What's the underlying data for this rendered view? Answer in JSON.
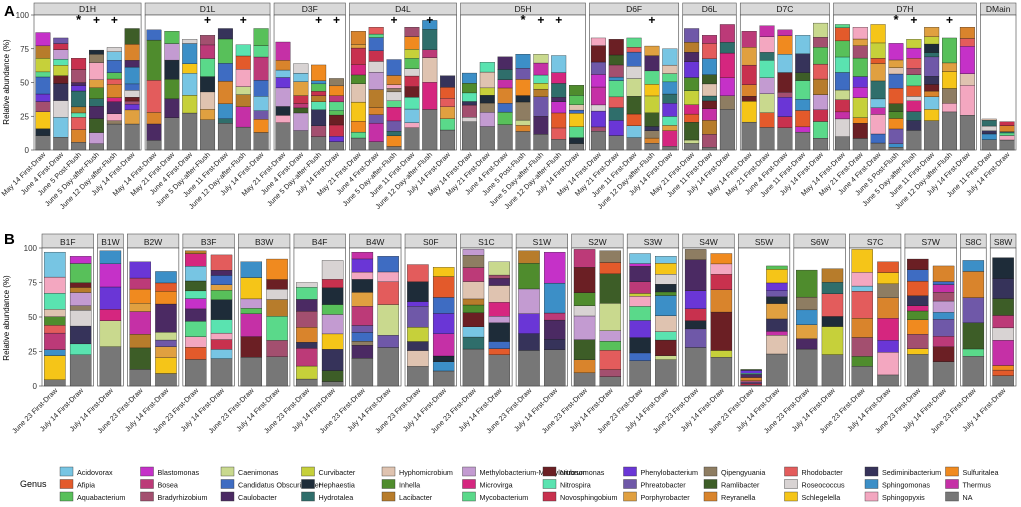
{
  "figure": {
    "panel_a_label": "A",
    "panel_b_label": "B",
    "ylabel": "Relative abundance (%)",
    "legend_title": "Genus"
  },
  "colors": {
    "Acidovorax": "#77c5e3",
    "Afipia": "#e35a2b",
    "Aquabacterium": "#58c05a",
    "Blastomonas": "#c531c8",
    "Bosea": "#bc3a78",
    "Bradyrhizobium": "#a34f6f",
    "Caenimonas": "#c9d98e",
    "Candidatus Obscuribacter": "#3e6cc2",
    "Caulobacter": "#4b2a63",
    "Curvibacter": "#c6d03a",
    "Hephaestia": "#1e2c39",
    "Hydrotalea": "#2f6e6b",
    "Hyphomicrobium": "#dfc3b0",
    "Inhella": "#4f8c2d",
    "Lacibacter": "#b77c2b",
    "Methylobacterium-Methylorubrum": "#c39bd1",
    "Microvirga": "#d5267f",
    "Mycobacterium": "#5ad98a",
    "Nitrosomonas": "#6b1f24",
    "Nitrospira": "#5ae3b0",
    "Novosphingobium": "#c8314e",
    "Phenylobacterium": "#6a36d6",
    "Phreatobacter": "#6f58a8",
    "Porphyrobacter": "#e0a040",
    "Qipengyuania": "#8e7d62",
    "Ramlibacter": "#3d5d27",
    "Reyranella": "#d9842c",
    "Rhodobacter": "#e35c5c",
    "Roseococcus": "#d8d3d3",
    "Schlegelella": "#f5c518",
    "Sediminibacterium": "#36335a",
    "Sphingomonas": "#3c8fc7",
    "Sphingopyxis": "#f3a7c0",
    "Sulfuritalea": "#f08a1f",
    "Thermus": "#c530a6",
    "NA": "#777777"
  },
  "chart_data": [
    {
      "type": "bar",
      "title": "Panel A",
      "ylabel": "Relative abundance (%)",
      "ylim": [
        0,
        100
      ],
      "yticks": [
        0,
        25,
        50,
        75,
        100
      ],
      "facets": [
        {
          "name": "D1H",
          "categories": [
            "May 14 First-Draw",
            "June 4 First-Draw",
            "June 5 Post-Flush",
            "June 5 Day-after-Flush",
            "June 12 Day-after-Flush",
            "July 14 First-Draw"
          ],
          "totals": [
            87,
            83,
            68,
            74,
            76,
            90
          ],
          "marks": [
            "",
            "",
            "*",
            "+",
            "+",
            ""
          ]
        },
        {
          "name": "D1L",
          "categories": [
            "May 14 First-Draw",
            "May 21 First-Draw",
            "June 4 First-Draw",
            "June 5 Day-after-Flush",
            "June 11 First-Draw",
            "June 12 Day-after-Flush",
            "July 14 First-Draw"
          ],
          "totals": [
            89,
            88,
            82,
            85,
            90,
            78,
            90
          ],
          "marks": [
            "",
            "",
            "",
            "+",
            "",
            "+",
            ""
          ]
        },
        {
          "name": "D3F",
          "categories": [
            "May 21 First-Draw",
            "June 4 First-Draw",
            "June 5 Day-after-Flush",
            "July 14 First-Draw"
          ],
          "totals": [
            80,
            64,
            63,
            53
          ],
          "marks": [
            "",
            "",
            "+",
            "+"
          ]
        },
        {
          "name": "D4L",
          "categories": [
            "May 21 First-Draw",
            "June 4 First-Draw",
            "June 5 Day-after-Flush",
            "June 11 First-Draw",
            "June 12 Day-after-Flush",
            "July 14 First-Draw"
          ],
          "totals": [
            88,
            91,
            67,
            91,
            96,
            55
          ],
          "marks": [
            "",
            "",
            "+",
            "",
            "+",
            ""
          ]
        },
        {
          "name": "D5H",
          "categories": [
            "May 14 First-Draw",
            "May 21 First-Draw",
            "June 4 First-Draw",
            "June 5 Post-Flush",
            "June 5 Day-after-Flush",
            "June 12 Day-after-Flush",
            "July 14 First-Draw"
          ],
          "totals": [
            57,
            65,
            69,
            71,
            71,
            70,
            48
          ],
          "marks": [
            "",
            "",
            "",
            "*",
            "+",
            "+",
            ""
          ]
        },
        {
          "name": "D6F",
          "categories": [
            "May 14 First-Draw",
            "May 21 First-Draw",
            "June 11 First-Draw",
            "June 12 Day-after-Flush",
            "July 14 First-Draw"
          ],
          "totals": [
            83,
            82,
            83,
            77,
            75
          ],
          "marks": [
            "",
            "",
            "",
            "+",
            ""
          ]
        },
        {
          "name": "D6L",
          "categories": [
            "May 21 First-Draw",
            "June 11 First-Draw",
            "July 14 First-Draw"
          ],
          "totals": [
            90,
            85,
            93
          ],
          "marks": [
            "",
            "",
            ""
          ]
        },
        {
          "name": "D7C",
          "categories": [
            "May 14 First-Draw",
            "May 21 First-Draw",
            "June 4 First-Draw",
            "June 11 First-Draw",
            "July 14 First-Draw"
          ],
          "totals": [
            88,
            92,
            89,
            85,
            94
          ],
          "marks": [
            "",
            "",
            "",
            "",
            ""
          ]
        },
        {
          "name": "D7H",
          "categories": [
            "May 14 First-Draw",
            "May 21 First-Draw",
            "June 4 First-Draw",
            "June 5 Post-Flush",
            "June 5 Day-after-Flush",
            "June 11 First-Draw",
            "June 12 Day-after-Flush",
            "July 14 First-Draw"
          ],
          "totals": [
            93,
            91,
            93,
            79,
            82,
            91,
            83,
            91
          ],
          "marks": [
            "",
            "",
            "",
            "*",
            "+",
            "",
            "+",
            ""
          ]
        },
        {
          "name": "DMain",
          "categories": [
            "June 11 First-Draw",
            "July 14 First-Draw"
          ],
          "totals": [
            23,
            21
          ],
          "marks": [
            "",
            ""
          ]
        }
      ]
    },
    {
      "type": "bar",
      "title": "Panel B",
      "ylabel": "Relative abundance (%)",
      "ylim": [
        0,
        100
      ],
      "yticks": [
        0,
        25,
        50,
        75,
        100
      ],
      "facets": [
        {
          "name": "B1F",
          "categories": [
            "June 23 First-Draw",
            "July 14 First-Draw"
          ],
          "totals": [
            97,
            94
          ]
        },
        {
          "name": "B1W",
          "categories": [
            "July 14 First-Draw"
          ],
          "totals": [
            98
          ]
        },
        {
          "name": "B2W",
          "categories": [
            "June 23 First-Draw",
            "July 14 First-Draw"
          ],
          "totals": [
            90,
            83
          ]
        },
        {
          "name": "B3F",
          "categories": [
            "June 23 First-Draw",
            "July 14 First-Draw"
          ],
          "totals": [
            98,
            95
          ]
        },
        {
          "name": "B3W",
          "categories": [
            "June 23 First-Draw",
            "July 14 First-Draw"
          ],
          "totals": [
            90,
            92
          ]
        },
        {
          "name": "B4F",
          "categories": [
            "June 23 First-Draw",
            "July 14 First-Draw"
          ],
          "totals": [
            75,
            91
          ]
        },
        {
          "name": "B4W",
          "categories": [
            "June 23 First-Draw",
            "July 14 First-Draw"
          ],
          "totals": [
            97,
            94
          ]
        },
        {
          "name": "S0F",
          "categories": [
            "June 23 First-Draw",
            "July 14 First-Draw"
          ],
          "totals": [
            88,
            86
          ]
        },
        {
          "name": "S1C",
          "categories": [
            "June 23 First-Draw",
            "July 14 First-Draw"
          ],
          "totals": [
            99,
            90
          ]
        },
        {
          "name": "S1W",
          "categories": [
            "June 23 First-Draw",
            "July 14 First-Draw"
          ],
          "totals": [
            98,
            97
          ]
        },
        {
          "name": "S2W",
          "categories": [
            "June 23 First-Draw",
            "July 14 First-Draw"
          ],
          "totals": [
            99,
            98
          ]
        },
        {
          "name": "S3W",
          "categories": [
            "June 23 First-Draw",
            "July 14 First-Draw"
          ],
          "totals": [
            96,
            94
          ]
        },
        {
          "name": "S4W",
          "categories": [
            "June 23 First-Draw",
            "July 14 First-Draw"
          ],
          "totals": [
            99,
            96
          ]
        },
        {
          "name": "S5W",
          "categories": [
            "June 23 First-Draw",
            "July 14 First-Draw"
          ],
          "totals": [
            12,
            87
          ]
        },
        {
          "name": "S6W",
          "categories": [
            "June 23 First-Draw",
            "July 14 First-Draw"
          ],
          "totals": [
            84,
            85
          ]
        },
        {
          "name": "S7C",
          "categories": [
            "June 23 First-Draw",
            "July 14 First-Draw"
          ],
          "totals": [
            99,
            90
          ]
        },
        {
          "name": "S7W",
          "categories": [
            "June 23 First-Draw",
            "July 14 First-Draw"
          ],
          "totals": [
            92,
            87
          ]
        },
        {
          "name": "S8C",
          "categories": [
            "June 23 First-Draw"
          ],
          "totals": [
            91
          ]
        },
        {
          "name": "S8W",
          "categories": [
            "July 14 First-Draw"
          ],
          "totals": [
            93
          ]
        }
      ]
    }
  ],
  "legend": [
    "Acidovorax",
    "Afipia",
    "Aquabacterium",
    "Blastomonas",
    "Bosea",
    "Bradyrhizobium",
    "Caenimonas",
    "Candidatus Obscuribacter",
    "Caulobacter",
    "Curvibacter",
    "Hephaestia",
    "Hydrotalea",
    "Hyphomicrobium",
    "Inhella",
    "Lacibacter",
    "Methylobacterium-Methylorubrum",
    "Microvirga",
    "Mycobacterium",
    "Nitrosomonas",
    "Nitrospira",
    "Novosphingobium",
    "Phenylobacterium",
    "Phreatobacter",
    "Porphyrobacter",
    "Qipengyuania",
    "Ramlibacter",
    "Reyranella",
    "Rhodobacter",
    "Roseococcus",
    "Schlegelella",
    "Sediminibacterium",
    "Sphingomonas",
    "Sphingopyxis",
    "Sulfuritalea",
    "Thermus",
    "NA"
  ]
}
